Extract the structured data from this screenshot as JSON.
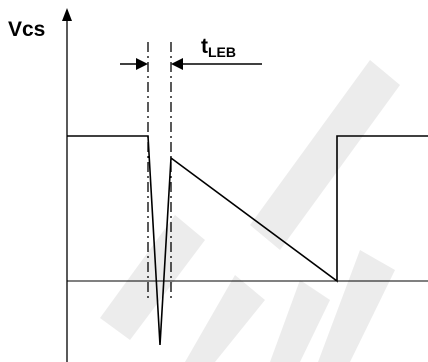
{
  "labels": {
    "y_axis": "Vcs",
    "timing_symbol": "t",
    "timing_subscript": "LEB"
  },
  "colors": {
    "ink": "#000000",
    "watermark": "#ececec",
    "background": "#ffffff"
  }
}
